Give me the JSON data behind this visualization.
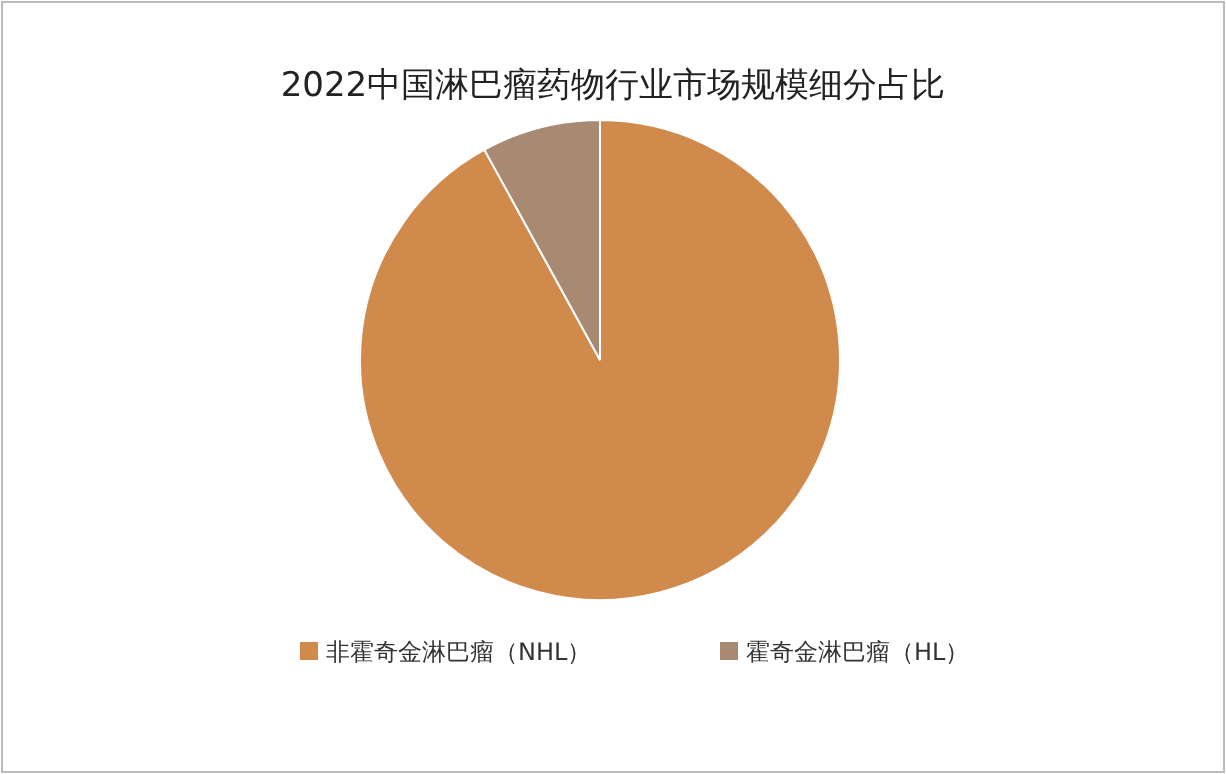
{
  "chart_data": {
    "type": "pie",
    "title": "2022中国淋巴瘤药物行业市场规模细分占比",
    "categories": [
      "非霍奇金淋巴瘤（NHL）",
      "霍奇金淋巴瘤（HL）"
    ],
    "values": [
      92,
      8
    ],
    "colors": [
      "#d08a4c",
      "#a88a72"
    ],
    "legend": "bottom"
  }
}
